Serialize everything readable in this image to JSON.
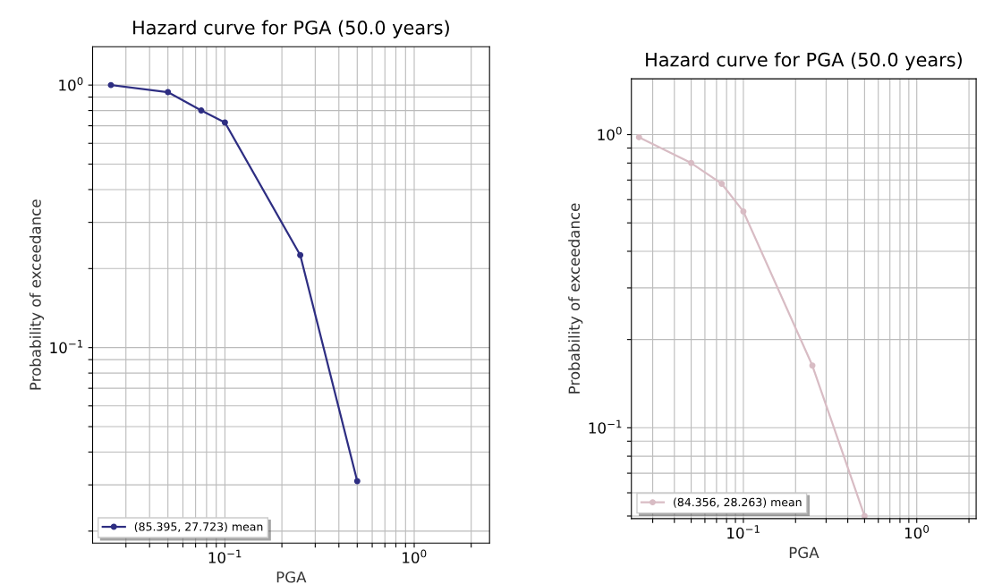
{
  "chart_data": [
    {
      "type": "line",
      "title": "Hazard curve for PGA (50.0 years)",
      "xlabel": "PGA",
      "ylabel": "Probability of exceedance",
      "log": "xy",
      "grid": true,
      "legend": "bottom left",
      "marker": "circle",
      "x": [
        0.025,
        0.05,
        0.075,
        0.1,
        0.25,
        0.5
      ],
      "series": [
        {
          "name": "(85.395, 27.723) mean",
          "color": "#2e2e82",
          "values": [
            1.0,
            0.94,
            0.8,
            0.72,
            0.225,
            0.031
          ]
        }
      ],
      "xlim": [
        0.02,
        2.5
      ],
      "ylim": [
        0.018,
        1.4
      ],
      "xticks": [
        {
          "value": 0.03,
          "label": null
        },
        {
          "value": 0.04,
          "label": null
        },
        {
          "value": 0.05,
          "label": null
        },
        {
          "value": 0.06,
          "label": null
        },
        {
          "value": 0.07,
          "label": null
        },
        {
          "value": 0.08,
          "label": null
        },
        {
          "value": 0.09,
          "label": null
        },
        {
          "value": 0.1,
          "label": "10$^{−1}$"
        },
        {
          "value": 0.2,
          "label": null
        },
        {
          "value": 0.3,
          "label": null
        },
        {
          "value": 0.4,
          "label": null
        },
        {
          "value": 0.5,
          "label": null
        },
        {
          "value": 0.6,
          "label": null
        },
        {
          "value": 0.7,
          "label": null
        },
        {
          "value": 0.8,
          "label": null
        },
        {
          "value": 0.9,
          "label": null
        },
        {
          "value": 1,
          "label": "10$^{0}$"
        },
        {
          "value": 2,
          "label": null
        }
      ],
      "yticks": [
        {
          "value": 0.02,
          "label": null
        },
        {
          "value": 0.03,
          "label": null
        },
        {
          "value": 0.04,
          "label": null
        },
        {
          "value": 0.05,
          "label": null
        },
        {
          "value": 0.06,
          "label": null
        },
        {
          "value": 0.07,
          "label": null
        },
        {
          "value": 0.08,
          "label": null
        },
        {
          "value": 0.09,
          "label": null
        },
        {
          "value": 0.1,
          "label": "10$^{−1}$"
        },
        {
          "value": 0.2,
          "label": null
        },
        {
          "value": 0.3,
          "label": null
        },
        {
          "value": 0.4,
          "label": null
        },
        {
          "value": 0.5,
          "label": null
        },
        {
          "value": 0.6,
          "label": null
        },
        {
          "value": 0.7,
          "label": null
        },
        {
          "value": 0.8,
          "label": null
        },
        {
          "value": 0.9,
          "label": null
        },
        {
          "value": 1,
          "label": "10$^{0}$"
        }
      ]
    },
    {
      "type": "line",
      "title": "Hazard curve for PGA (50.0 years)",
      "xlabel": "PGA",
      "ylabel": "Probability of exceedance",
      "log": "xy",
      "grid": true,
      "legend": "bottom left",
      "marker": "circle",
      "x": [
        0.025,
        0.05,
        0.075,
        0.1,
        0.25,
        0.5
      ],
      "series": [
        {
          "name": "(84.356, 28.263) mean",
          "color": "#d8bcc4",
          "values": [
            0.98,
            0.8,
            0.68,
            0.547,
            0.163,
            0.05
          ]
        }
      ],
      "xlim": [
        0.0226,
        2.2
      ],
      "ylim": [
        0.049,
        1.55
      ],
      "xticks": [
        {
          "value": 0.03,
          "label": null
        },
        {
          "value": 0.04,
          "label": null
        },
        {
          "value": 0.05,
          "label": null
        },
        {
          "value": 0.06,
          "label": null
        },
        {
          "value": 0.07,
          "label": null
        },
        {
          "value": 0.08,
          "label": null
        },
        {
          "value": 0.09,
          "label": null
        },
        {
          "value": 0.1,
          "label": "10$^{−1}$"
        },
        {
          "value": 0.2,
          "label": null
        },
        {
          "value": 0.3,
          "label": null
        },
        {
          "value": 0.4,
          "label": null
        },
        {
          "value": 0.5,
          "label": null
        },
        {
          "value": 0.6,
          "label": null
        },
        {
          "value": 0.7,
          "label": null
        },
        {
          "value": 0.8,
          "label": null
        },
        {
          "value": 0.9,
          "label": null
        },
        {
          "value": 1,
          "label": "10$^{0}$"
        },
        {
          "value": 2,
          "label": null
        }
      ],
      "yticks": [
        {
          "value": 0.05,
          "label": null
        },
        {
          "value": 0.06,
          "label": null
        },
        {
          "value": 0.07,
          "label": null
        },
        {
          "value": 0.08,
          "label": null
        },
        {
          "value": 0.09,
          "label": null
        },
        {
          "value": 0.1,
          "label": "10$^{−1}$"
        },
        {
          "value": 0.2,
          "label": null
        },
        {
          "value": 0.3,
          "label": null
        },
        {
          "value": 0.4,
          "label": null
        },
        {
          "value": 0.5,
          "label": null
        },
        {
          "value": 0.6,
          "label": null
        },
        {
          "value": 0.7,
          "label": null
        },
        {
          "value": 0.8,
          "label": null
        },
        {
          "value": 0.9,
          "label": null
        },
        {
          "value": 1,
          "label": "10$^{0}$"
        }
      ]
    }
  ]
}
